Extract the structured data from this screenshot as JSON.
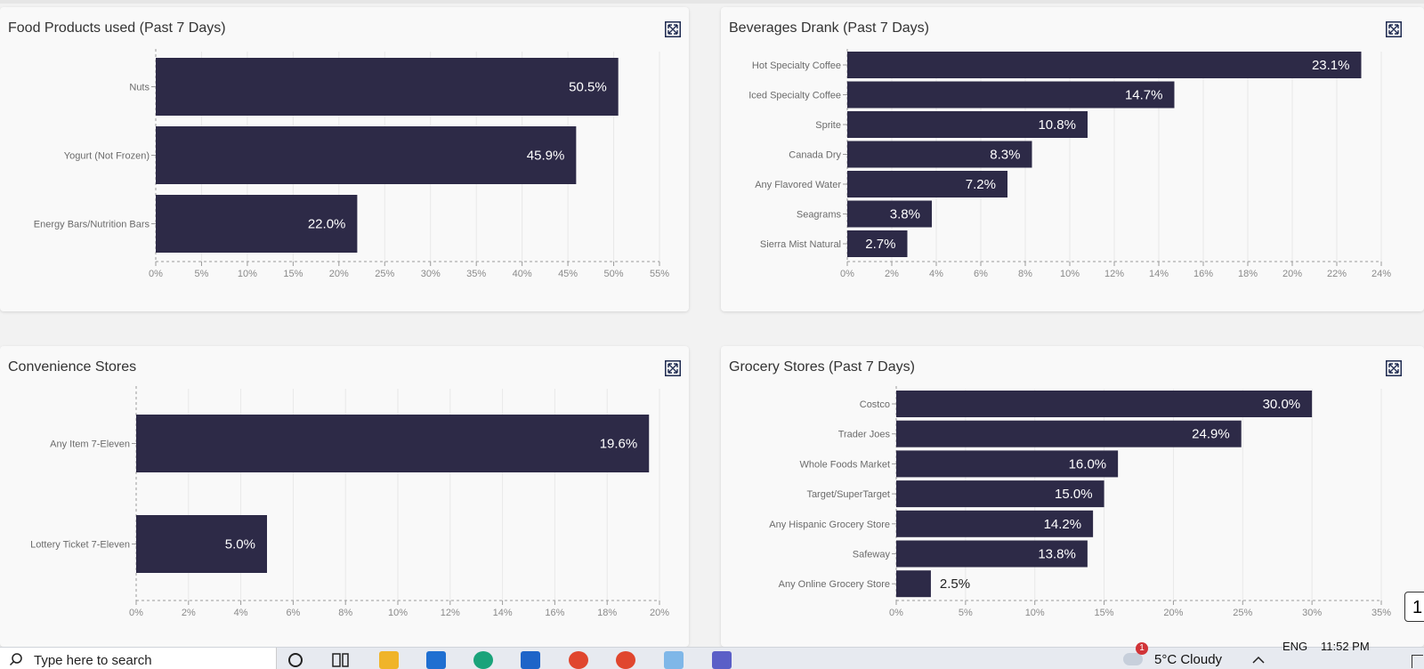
{
  "panels": {
    "food": {
      "title": "Food Products used (Past 7 Days)",
      "chart_data": {
        "type": "bar",
        "orientation": "horizontal",
        "title": "Food Products used (Past 7 Days)",
        "categories": [
          "Nuts",
          "Yogurt (Not Frozen)",
          "Energy Bars/Nutrition Bars"
        ],
        "values": [
          50.5,
          45.9,
          22.0
        ],
        "value_labels": [
          "50.5%",
          "45.9%",
          "22.0%"
        ],
        "xlim": [
          0,
          55
        ],
        "xticks": [
          "0%",
          "5%",
          "10%",
          "15%",
          "20%",
          "25%",
          "30%",
          "35%",
          "40%",
          "45%",
          "50%",
          "55%"
        ],
        "grid": true
      }
    },
    "beverages": {
      "title": "Beverages Drank (Past 7 Days)",
      "chart_data": {
        "type": "bar",
        "orientation": "horizontal",
        "title": "Beverages Drank (Past 7 Days)",
        "categories": [
          "Hot Specialty Coffee",
          "Iced Specialty Coffee",
          "Sprite",
          "Canada Dry",
          "Any Flavored Water",
          "Seagrams",
          "Sierra Mist Natural"
        ],
        "values": [
          23.1,
          14.7,
          10.8,
          8.3,
          7.2,
          3.8,
          2.7
        ],
        "value_labels": [
          "23.1%",
          "14.7%",
          "10.8%",
          "8.3%",
          "7.2%",
          "3.8%",
          "2.7%"
        ],
        "xlim": [
          0,
          24
        ],
        "xticks": [
          "0%",
          "2%",
          "4%",
          "6%",
          "8%",
          "10%",
          "12%",
          "14%",
          "16%",
          "18%",
          "20%",
          "22%",
          "24%"
        ],
        "grid": true
      }
    },
    "convenience": {
      "title": "Convenience Stores",
      "chart_data": {
        "type": "bar",
        "orientation": "horizontal",
        "title": "Convenience Stores",
        "categories": [
          "Any Item 7-Eleven",
          "Lottery Ticket 7-Eleven"
        ],
        "values": [
          19.6,
          5.0
        ],
        "value_labels": [
          "19.6%",
          "5.0%"
        ],
        "xlim": [
          0,
          20
        ],
        "xticks": [
          "0%",
          "2%",
          "4%",
          "6%",
          "8%",
          "10%",
          "12%",
          "14%",
          "16%",
          "18%",
          "20%"
        ],
        "grid": true
      }
    },
    "grocery": {
      "title": "Grocery Stores (Past 7 Days)",
      "chart_data": {
        "type": "bar",
        "orientation": "horizontal",
        "title": "Grocery Stores (Past 7 Days)",
        "categories": [
          "Costco",
          "Trader Joes",
          "Whole Foods Market",
          "Target/SuperTarget",
          "Any Hispanic Grocery Store",
          "Safeway",
          "Any Online Grocery Store"
        ],
        "values": [
          30.0,
          24.9,
          16.0,
          15.0,
          14.2,
          13.8,
          2.5
        ],
        "value_labels": [
          "30.0%",
          "24.9%",
          "16.0%",
          "15.0%",
          "14.2%",
          "13.8%",
          "2.5%"
        ],
        "xlim": [
          0,
          35
        ],
        "xticks": [
          "0%",
          "5%",
          "10%",
          "15%",
          "20%",
          "25%",
          "30%",
          "35%"
        ],
        "grid": true
      }
    }
  },
  "colors": {
    "bar": "#2d2a47",
    "grid": "#e8e8e8",
    "axis": "#9a9a9a",
    "tick_text": "#8a8a8a",
    "category_text": "#6b6b6b"
  },
  "taskbar": {
    "search_placeholder": "Type here to search",
    "weather": "5°C  Cloudy",
    "notification_badge": "1",
    "language": "ENG",
    "time": "11:52 PM"
  },
  "floating_button_label": "1"
}
